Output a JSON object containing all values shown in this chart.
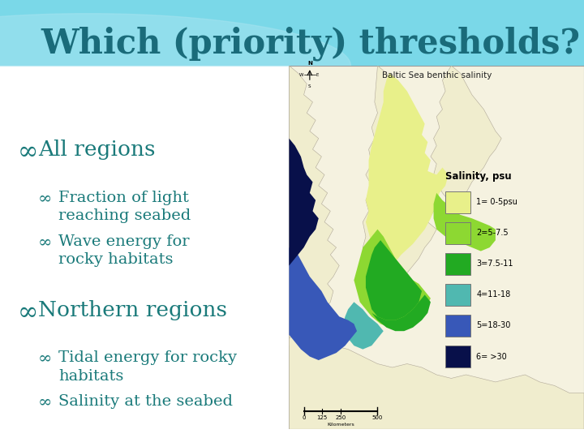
{
  "title": "Which (priority) thresholds?",
  "title_color": "#1a6b7a",
  "title_fontsize": 30,
  "bg_top_color": "#6dcfdf",
  "bg_bottom_color": "#ffffff",
  "bullet_color": "#1a7a7a",
  "items": [
    {
      "level": 1,
      "text": "All regions",
      "fontsize": 19
    },
    {
      "level": 2,
      "text": "Fraction of light\nreaching seabed",
      "fontsize": 14
    },
    {
      "level": 2,
      "text": "Wave energy for\nrocky habitats",
      "fontsize": 14
    },
    {
      "level": 1,
      "text": "Northern regions",
      "fontsize": 19
    },
    {
      "level": 2,
      "text": "Tidal energy for rocky\nhabitats",
      "fontsize": 14
    },
    {
      "level": 2,
      "text": "Salinity at the seabed",
      "fontsize": 14
    }
  ],
  "map_title": "Baltic Sea benthic salinity",
  "legend_title": "Salinity, psu",
  "legend_items": [
    {
      "label": "1= 0-5psu",
      "color": "#e8f08a"
    },
    {
      "label": "2=5-7.5",
      "color": "#8dd832"
    },
    {
      "label": "3=7.5-11",
      "color": "#22aa22"
    },
    {
      "label": "4=11-18",
      "color": "#50b8b0"
    },
    {
      "label": "5=18-30",
      "color": "#3858b8"
    },
    {
      "label": "6= >30",
      "color": "#08104a"
    }
  ],
  "land_color": "#f0edce",
  "land_edge_color": "#b0a898",
  "map_bg_color": "#f5f2e0",
  "map_border_color": "#999999"
}
